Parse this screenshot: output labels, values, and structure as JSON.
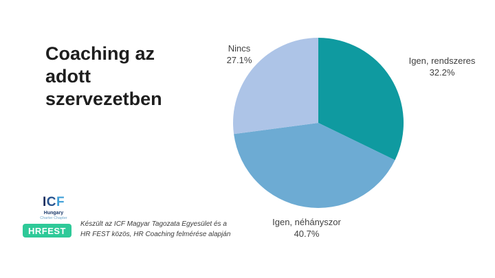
{
  "title": "Coaching az adott szervezetben",
  "chart_data": {
    "type": "pie",
    "title": "Coaching az adott szervezetben",
    "start_angle_deg": 0,
    "direction": "clockwise",
    "legend_position": "outside-labels",
    "slices": [
      {
        "label": "Igen, rendszeres",
        "value": 32.2,
        "pct_label": "32.2%",
        "color": "#0f9aa0"
      },
      {
        "label": "Igen, néhányszor",
        "value": 40.7,
        "pct_label": "40.7%",
        "color": "#6dabd3"
      },
      {
        "label": "Nincs",
        "value": 27.1,
        "pct_label": "27.1%",
        "color": "#adc4e7"
      }
    ]
  },
  "footer": {
    "icf_logo": {
      "letters": {
        "i": "I",
        "c": "C",
        "f": "F"
      },
      "country": "Hungary",
      "chapter": "Charter Chapter"
    },
    "hrfest_logo": {
      "text": "HRFEST",
      "color": "#2ec998"
    },
    "attribution_line1": "Készült az ICF Magyar Tagozata Egyesület és a",
    "attribution_line2": "HR FEST közös, HR Coaching felmérése alapján"
  }
}
